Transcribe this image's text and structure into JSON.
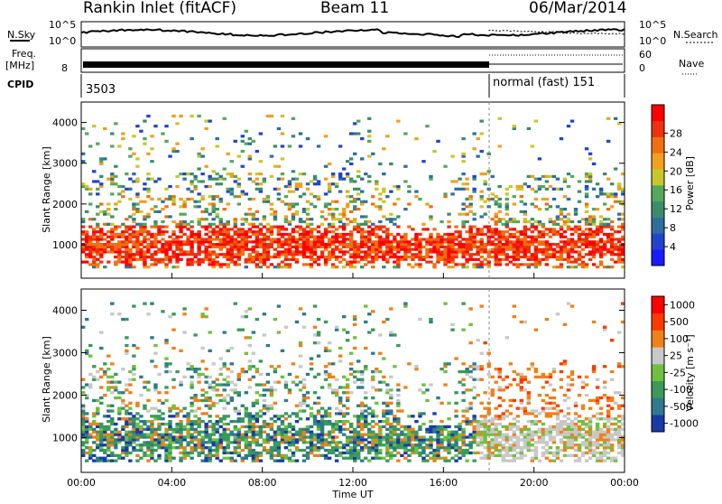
{
  "header": {
    "station": "Rankin Inlet (fitACF)",
    "beam": "Beam 11",
    "date": "06/Mar/2014"
  },
  "noise_panel": {
    "left_label": "N.Sky",
    "right_label": "N.Search",
    "tick_top": "10^5",
    "tick_bottom": "10^0"
  },
  "freq_panel": {
    "left_label_1": "Freq.",
    "left_label_2": "[MHz]",
    "left_tick": "8",
    "right_label": "Nave",
    "right_tick_top": "60",
    "right_tick_bottom": "0"
  },
  "cpid_panel": {
    "label": "CPID",
    "segment_1": "3503",
    "segment_2": "normal (fast) 151"
  },
  "chart_data": [
    {
      "type": "heatmap",
      "title": "",
      "ylabel": "Slant Range [km]",
      "xlabel": "Time UT",
      "ylim": [
        180,
        4500
      ],
      "y_ticks": [
        "1000",
        "2000",
        "3000",
        "4000"
      ],
      "x_ticks": [
        "00:00",
        "04:00",
        "08:00",
        "12:00",
        "16:00",
        "20:00",
        "00:00"
      ],
      "colorbar": {
        "label": "Power [dB]",
        "ticks": [
          "4",
          "8",
          "12",
          "16",
          "20",
          "24",
          "28"
        ],
        "colors": [
          "#1a1aff",
          "#2244cc",
          "#2d6ea0",
          "#3c8c6c",
          "#55a85a",
          "#c8c82a",
          "#f0a020",
          "#f07010",
          "#ee3010",
          "#ff0000"
        ]
      }
    },
    {
      "type": "heatmap",
      "title": "",
      "ylabel": "Slant Range [km]",
      "xlabel": "Time UT",
      "ylim": [
        180,
        4500
      ],
      "y_ticks": [
        "1000",
        "2000",
        "3000",
        "4000"
      ],
      "x_ticks": [
        "00:00",
        "04:00",
        "08:00",
        "12:00",
        "16:00",
        "20:00",
        "00:00"
      ],
      "colorbar": {
        "label": "Velocity [m s⁻¹]",
        "ticks": [
          "1000",
          "500",
          "100",
          "25",
          "-25",
          "-100",
          "-500",
          "-1000"
        ],
        "colors": [
          "#1a3aa8",
          "#2f7a8c",
          "#3a9a5a",
          "#70c040",
          "#c8c8c8",
          "#f08018",
          "#ff3a00",
          "#ff0000"
        ]
      }
    }
  ],
  "mode_change_time": "18:00"
}
